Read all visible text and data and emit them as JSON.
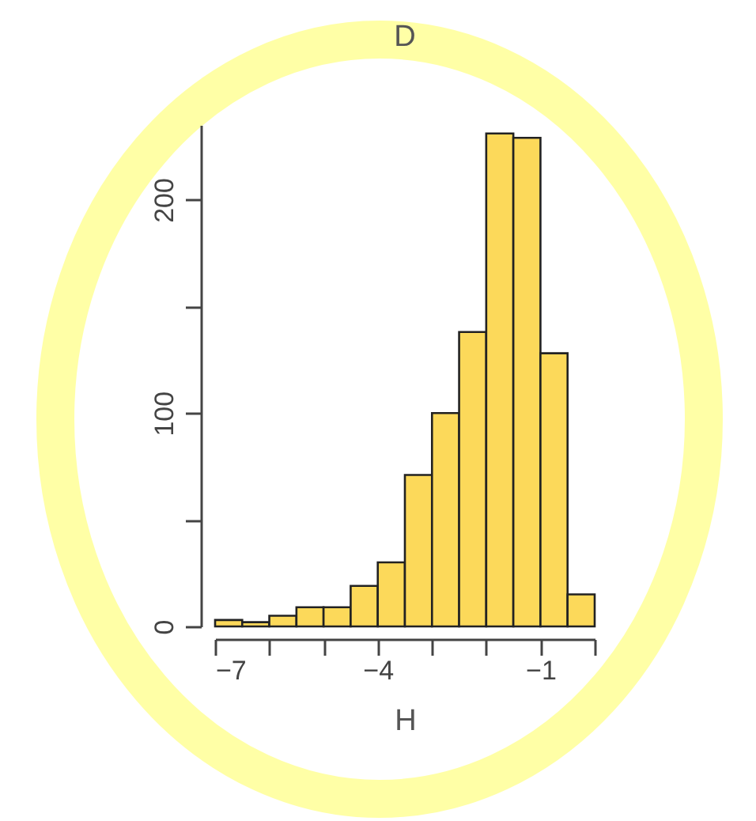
{
  "chart_data": {
    "type": "histogram",
    "title": "D",
    "xlabel": "H",
    "bins": [
      -7,
      -6.5,
      -6,
      -5.5,
      -5,
      -4.5,
      -4,
      -3.5,
      -3,
      -2.5,
      -2,
      -1.5,
      -1,
      -0.5,
      0
    ],
    "values": [
      3,
      2,
      5,
      9,
      9,
      19,
      30,
      71,
      100,
      138,
      231,
      229,
      128,
      15
    ],
    "color": "#fcd95a",
    "xlim": [
      -7,
      0
    ],
    "xticks": [
      -7,
      {
        "value": -6,
        "label": null
      },
      {
        "value": -5,
        "label": null
      },
      -4,
      {
        "value": -3,
        "label": null
      },
      {
        "value": -2,
        "label": null
      },
      -1,
      {
        "value": 0,
        "label": null
      }
    ],
    "ylim": [
      0,
      235
    ],
    "yticks": [
      0,
      {
        "value": 50,
        "label": null
      },
      100,
      {
        "value": 150,
        "label": null
      },
      200
    ],
    "grid": false
  }
}
